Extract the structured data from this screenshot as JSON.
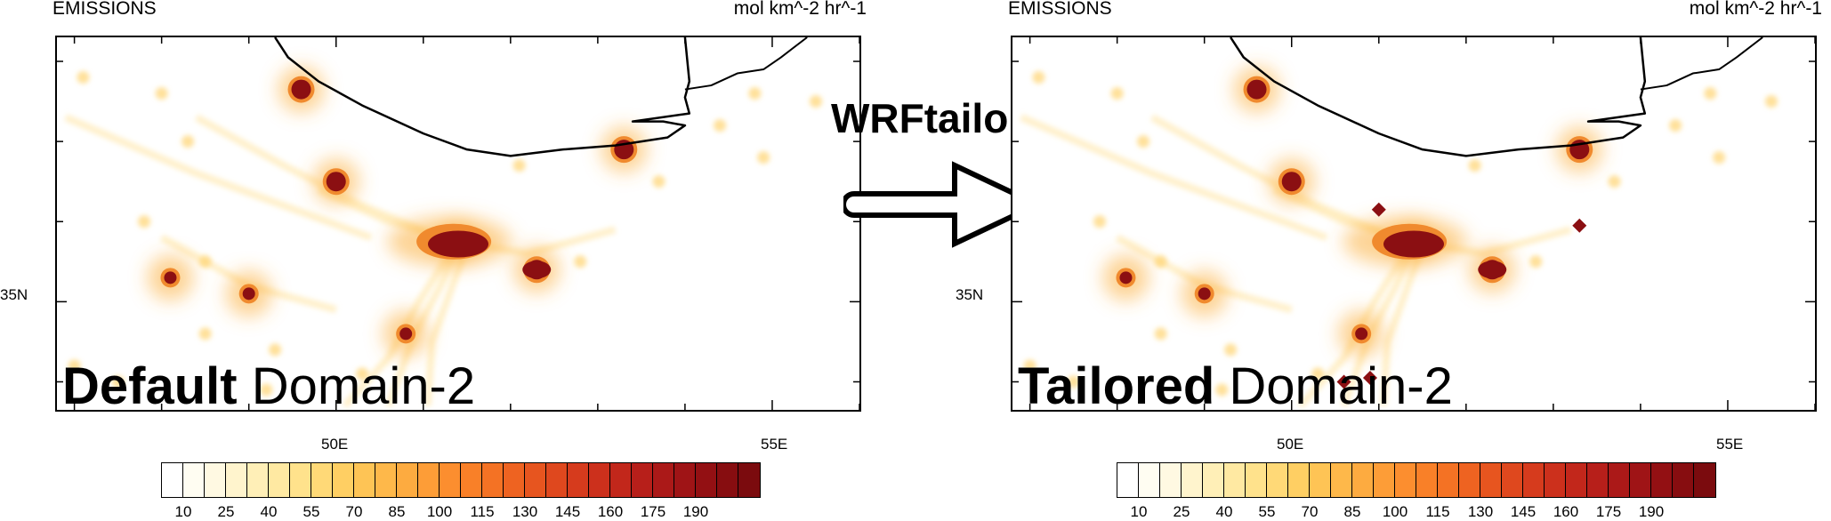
{
  "arrow_label": "WRFtailor",
  "colorbar": {
    "colors": [
      "#ffffff",
      "#fffdf2",
      "#fff9e2",
      "#fff4cd",
      "#ffefb7",
      "#ffe9a2",
      "#ffe28c",
      "#ffd977",
      "#ffcf63",
      "#fec455",
      "#feb84a",
      "#fdab40",
      "#fd9d37",
      "#fc8e2f",
      "#f98028",
      "#f47224",
      "#ee6321",
      "#e7551f",
      "#df481e",
      "#d63b1d",
      "#cc301c",
      "#c2271b",
      "#b71f1a",
      "#ab1918",
      "#9f1416",
      "#931013",
      "#870d10",
      "#7b0b0e"
    ],
    "labels": [
      "10",
      "25",
      "40",
      "55",
      "70",
      "85",
      "100",
      "115",
      "130",
      "145",
      "160",
      "175",
      "190"
    ]
  },
  "ylabel_tick": "35N",
  "xlabel_ticks": [
    "50E",
    "55E"
  ],
  "panels": [
    {
      "title": "EMISSIONS",
      "units": "mol km^-2 hr^-1",
      "label_bold": "Default",
      "label_rest": " Domain-2",
      "hotspots": [
        {
          "lon": 49.6,
          "lat": 37.65,
          "level": 1.0
        },
        {
          "lon": 50.0,
          "lat": 36.5,
          "level": 1.0
        },
        {
          "lon": 51.4,
          "lat": 35.75,
          "level": 1.0
        },
        {
          "lon": 53.3,
          "lat": 36.9,
          "level": 1.0
        },
        {
          "lon": 52.3,
          "lat": 35.4,
          "level": 1.0
        },
        {
          "lon": 48.1,
          "lat": 35.3,
          "level": 0.82
        },
        {
          "lon": 49.0,
          "lat": 35.1,
          "level": 0.95
        },
        {
          "lon": 50.8,
          "lat": 34.6,
          "level": 0.8
        }
      ],
      "extra_hotspots": []
    },
    {
      "title": "EMISSIONS",
      "units": "mol km^-2 hr^-1",
      "label_bold": "Tailored",
      "label_rest": " Domain-2",
      "hotspots": [
        {
          "lon": 49.6,
          "lat": 37.65,
          "level": 1.0
        },
        {
          "lon": 50.0,
          "lat": 36.5,
          "level": 1.0
        },
        {
          "lon": 51.4,
          "lat": 35.75,
          "level": 1.0
        },
        {
          "lon": 53.3,
          "lat": 36.9,
          "level": 1.0
        },
        {
          "lon": 52.3,
          "lat": 35.4,
          "level": 1.0
        },
        {
          "lon": 48.1,
          "lat": 35.3,
          "level": 0.82
        },
        {
          "lon": 49.0,
          "lat": 35.1,
          "level": 0.95
        },
        {
          "lon": 50.8,
          "lat": 34.6,
          "level": 0.8
        }
      ],
      "extra_hotspots": [
        {
          "lon": 51.0,
          "lat": 36.15
        },
        {
          "lon": 53.3,
          "lat": 35.95
        },
        {
          "lon": 50.6,
          "lat": 34.0
        },
        {
          "lon": 50.9,
          "lat": 34.05
        }
      ]
    }
  ]
}
